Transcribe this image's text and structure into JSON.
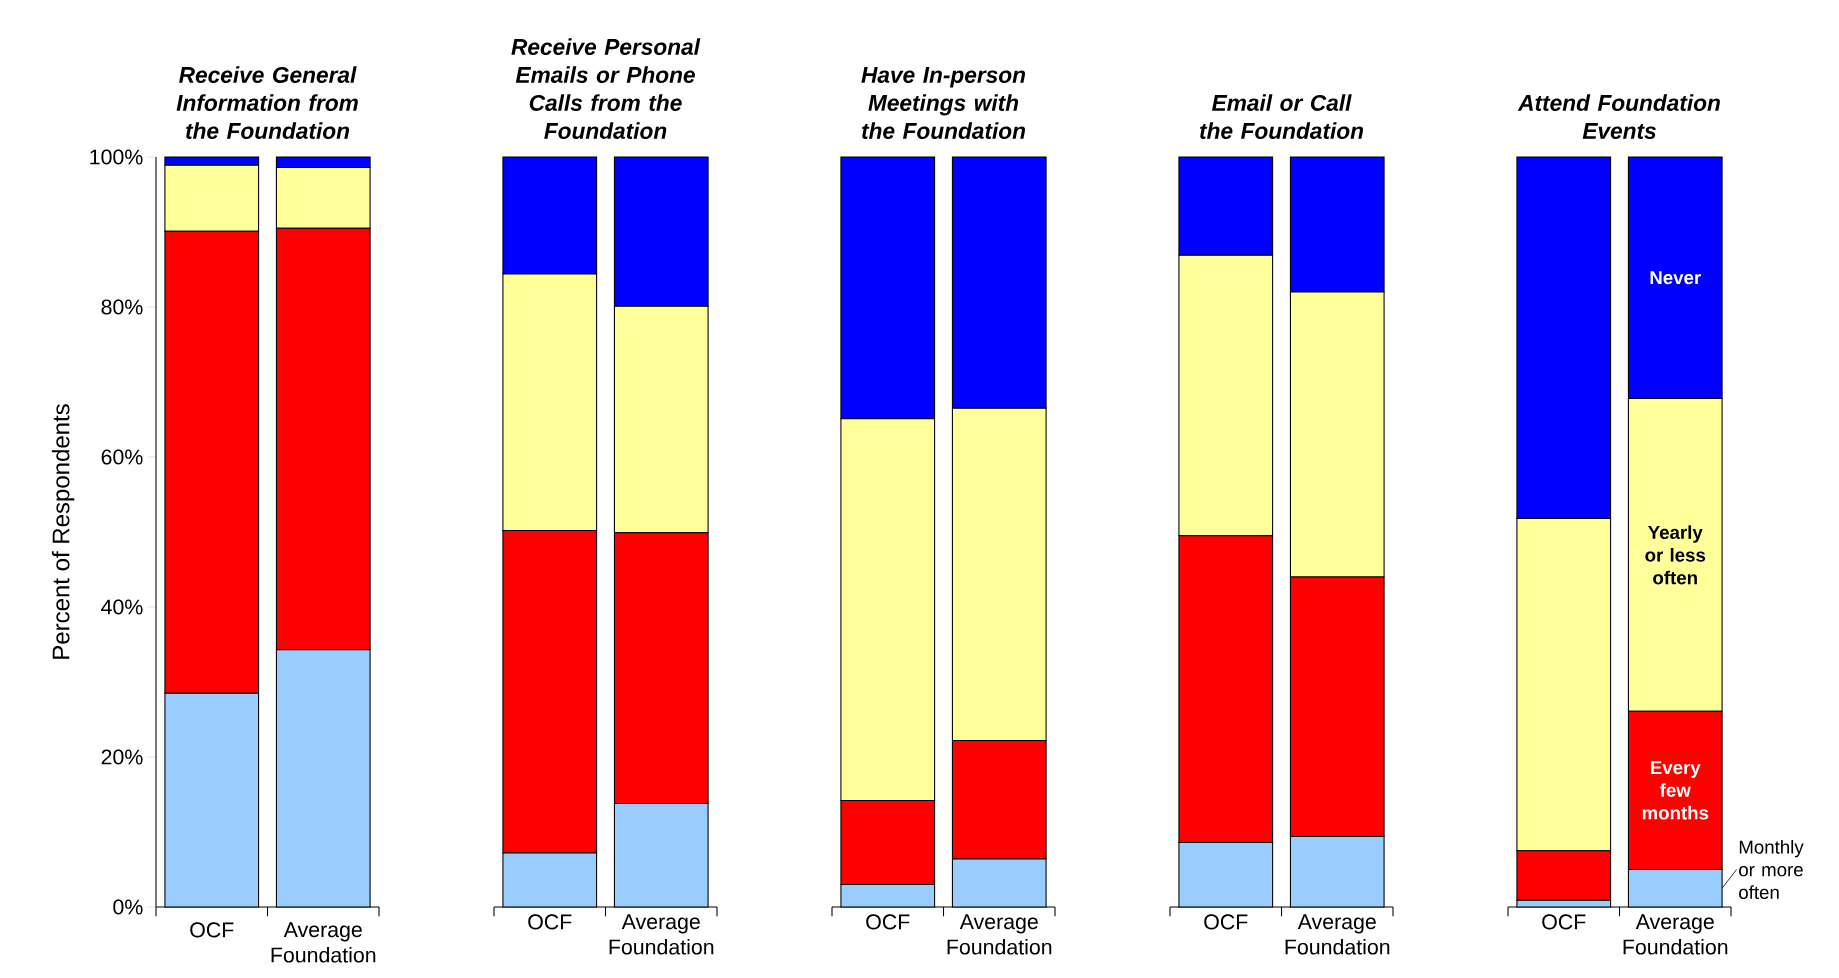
{
  "chart_data": [
    {
      "type": "bar",
      "stacked": true,
      "title": "Receive General Information from the Foundation",
      "ylabel": "Percent of Respondents",
      "categories": [
        "OCF",
        "Average Foundation"
      ],
      "ylim": [
        0,
        100
      ],
      "yticks": [
        {
          "value": 0,
          "label": "0%"
        },
        {
          "value": 20,
          "label": "20%"
        },
        {
          "value": 40,
          "label": "40%"
        },
        {
          "value": 60,
          "label": "60%"
        },
        {
          "value": 80,
          "label": "80%"
        },
        {
          "value": 100,
          "label": "100%"
        }
      ],
      "series": [
        {
          "color": "#99ccff",
          "values": [
            28.5,
            34.3
          ]
        },
        {
          "color": "#ff0000",
          "values": [
            61.6,
            56.2
          ]
        },
        {
          "color": "#ffff99",
          "values": [
            8.8,
            8.1
          ]
        },
        {
          "color": "#0000ff",
          "values": [
            1.1,
            1.4
          ]
        }
      ]
    },
    {
      "type": "bar",
      "stacked": true,
      "title": "Receive Personal Emails or Phone Calls from the Foundation",
      "categories": [
        "OCF",
        "Average Foundation"
      ],
      "ylim": [
        0,
        100
      ],
      "tick_labels": "x",
      "series": [
        {
          "color": "#99ccff",
          "values": [
            7.2,
            13.8
          ]
        },
        {
          "color": "#ff0000",
          "values": [
            43.0,
            36.1
          ]
        },
        {
          "color": "#ffff99",
          "values": [
            34.2,
            30.2
          ]
        },
        {
          "color": "#0000ff",
          "values": [
            15.6,
            19.9
          ]
        }
      ]
    },
    {
      "type": "bar",
      "stacked": true,
      "title": "Have In-person Meetings with the Foundation",
      "categories": [
        "OCF",
        "Average Foundation"
      ],
      "ylim": [
        0,
        100
      ],
      "tick_labels": "x",
      "series": [
        {
          "color": "#99ccff",
          "values": [
            3.0,
            6.4
          ]
        },
        {
          "color": "#ff0000",
          "values": [
            11.2,
            15.8
          ]
        },
        {
          "color": "#ffff99",
          "values": [
            50.9,
            44.3
          ]
        },
        {
          "color": "#0000ff",
          "values": [
            34.9,
            33.5
          ]
        }
      ]
    },
    {
      "type": "bar",
      "stacked": true,
      "title": "Email or Call the Foundation",
      "categories": [
        "OCF",
        "Average Foundation"
      ],
      "ylim": [
        0,
        100
      ],
      "tick_labels": "x",
      "series": [
        {
          "color": "#99ccff",
          "values": [
            8.6,
            9.4
          ]
        },
        {
          "color": "#ff0000",
          "values": [
            40.9,
            34.6
          ]
        },
        {
          "color": "#ffff99",
          "values": [
            37.4,
            38.0
          ]
        },
        {
          "color": "#0000ff",
          "values": [
            13.1,
            18.0
          ]
        }
      ]
    },
    {
      "type": "bar",
      "stacked": true,
      "title": "Attend Foundation Events",
      "categories": [
        "OCF",
        "Average Foundation"
      ],
      "ylim": [
        0,
        100
      ],
      "tick_labels": "x",
      "series": [
        {
          "name": "Monthly or more often",
          "color": "#99ccff",
          "values": [
            0.9,
            5.0
          ]
        },
        {
          "name": "Every few months",
          "color": "#ff0000",
          "values": [
            6.6,
            21.1
          ]
        },
        {
          "name": "Yearly or less often",
          "color": "#ffff99",
          "values": [
            44.3,
            41.7
          ]
        },
        {
          "name": "Never",
          "color": "#0000ff",
          "values": [
            48.2,
            32.2
          ]
        }
      ]
    }
  ]
}
